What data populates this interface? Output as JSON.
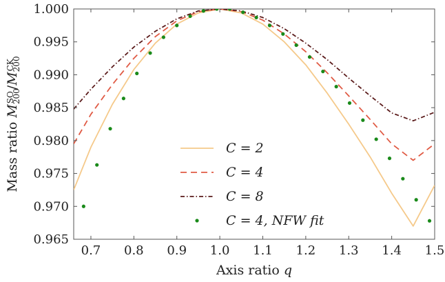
{
  "chart_data": {
    "type": "line",
    "xlabel": "Axis ratio q",
    "ylabel": "Mass ratio M200^SO / M200^CK",
    "xlim": [
      0.66,
      1.5
    ],
    "ylim": [
      0.965,
      1.0
    ],
    "x_ticks": [
      "0.7",
      "0.8",
      "0.9",
      "1.0",
      "1.1",
      "1.2",
      "1.3",
      "1.4",
      "1.5"
    ],
    "y_ticks": [
      "0.965",
      "0.970",
      "0.975",
      "0.980",
      "0.985",
      "0.990",
      "0.995",
      "1.000"
    ],
    "grid": false,
    "legend_position": "lower-center",
    "series": [
      {
        "name": "C = 2",
        "style": "solid",
        "color": "#f5c98a",
        "x": [
          0.66,
          0.7,
          0.75,
          0.8,
          0.85,
          0.9,
          0.95,
          1.0,
          1.05,
          1.1,
          1.15,
          1.2,
          1.25,
          1.3,
          1.35,
          1.4,
          1.45,
          1.5
        ],
        "y": [
          0.9725,
          0.979,
          0.9855,
          0.9908,
          0.9948,
          0.9977,
          0.9994,
          1.0,
          0.9994,
          0.9977,
          0.995,
          0.9915,
          0.9872,
          0.9825,
          0.9775,
          0.972,
          0.967,
          0.9732
        ]
      },
      {
        "name": "C = 4",
        "style": "dashed",
        "color": "#e05a44",
        "x": [
          0.66,
          0.7,
          0.75,
          0.8,
          0.85,
          0.9,
          0.95,
          1.0,
          1.05,
          1.1,
          1.15,
          1.2,
          1.25,
          1.3,
          1.35,
          1.4,
          1.45,
          1.5
        ],
        "y": [
          0.9795,
          0.984,
          0.9885,
          0.9925,
          0.9958,
          0.9982,
          0.9996,
          1.0,
          0.9996,
          0.9983,
          0.9962,
          0.9935,
          0.9903,
          0.9868,
          0.9832,
          0.9795,
          0.977,
          0.9795
        ]
      },
      {
        "name": "C = 8",
        "style": "dashdot",
        "color": "#5a1a1a",
        "x": [
          0.66,
          0.7,
          0.75,
          0.8,
          0.85,
          0.9,
          0.95,
          1.0,
          1.05,
          1.1,
          1.15,
          1.2,
          1.25,
          1.3,
          1.35,
          1.4,
          1.45,
          1.5
        ],
        "y": [
          0.9848,
          0.9878,
          0.9912,
          0.9942,
          0.9966,
          0.9985,
          0.9997,
          1.0,
          0.9997,
          0.9987,
          0.997,
          0.9948,
          0.9923,
          0.9895,
          0.9868,
          0.9842,
          0.983,
          0.9843
        ]
      },
      {
        "name": "C = 4, NFW fit",
        "style": "markers",
        "color": "#1a8a1a",
        "x": [
          0.683,
          0.714,
          0.745,
          0.776,
          0.807,
          0.838,
          0.869,
          0.9,
          0.931,
          0.962,
          0.993,
          1.023,
          1.054,
          1.085,
          1.116,
          1.147,
          1.178,
          1.209,
          1.24,
          1.271,
          1.302,
          1.333,
          1.364,
          1.395,
          1.426,
          1.457,
          1.488
        ],
        "y": [
          0.97,
          0.9763,
          0.9818,
          0.9864,
          0.9902,
          0.9933,
          0.9957,
          0.9975,
          0.9989,
          0.9997,
          1.0,
          1.0,
          0.9995,
          0.9987,
          0.9975,
          0.9962,
          0.9945,
          0.9927,
          0.9905,
          0.9882,
          0.9857,
          0.9831,
          0.9802,
          0.9773,
          0.9742,
          0.971,
          0.9678
        ]
      }
    ],
    "legend": [
      "C = 2",
      "C = 4",
      "C = 8",
      "C = 4, NFW fit"
    ]
  }
}
